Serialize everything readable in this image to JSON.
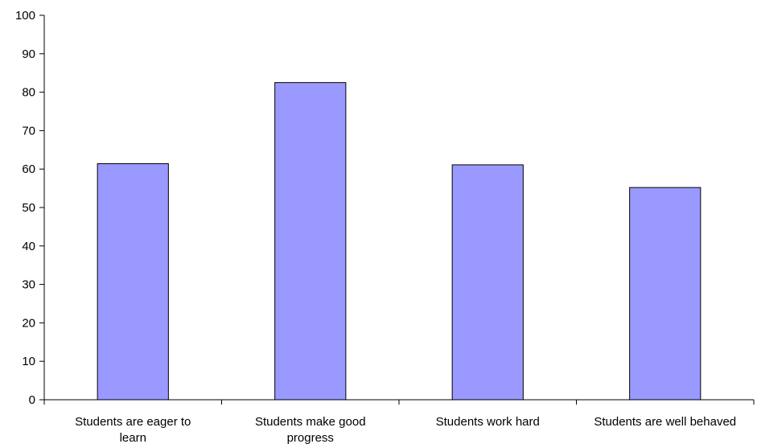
{
  "chart_data": {
    "type": "bar",
    "title": "",
    "xlabel": "",
    "ylabel": "",
    "ylim": [
      0,
      100
    ],
    "yticks": [
      0,
      10,
      20,
      30,
      40,
      50,
      60,
      70,
      80,
      90,
      100
    ],
    "grid": false,
    "legend": "none",
    "bar_color": "#9999ff",
    "bar_edge_color": "#000000",
    "categories": [
      [
        "Students are eager to",
        "learn"
      ],
      [
        "Students make good",
        "progress"
      ],
      [
        "Students work hard"
      ],
      [
        "Students are well behaved"
      ]
    ],
    "values": [
      61.4,
      82.5,
      61.1,
      55.2
    ]
  }
}
